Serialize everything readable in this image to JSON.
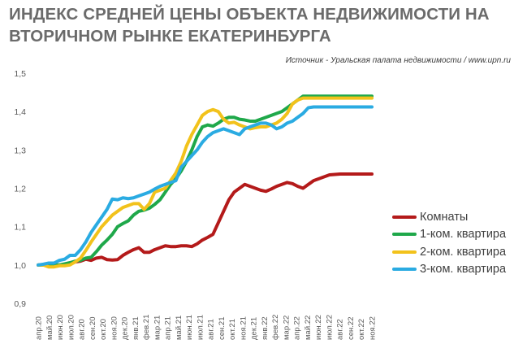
{
  "title": "ИНДЕКС СРЕДНЕЙ ЦЕНЫ ОБЪЕКТА НЕДВИЖИМОСТИ НА ВТОРИЧНОМ РЫНКЕ ЕКАТЕРИНБУРГА",
  "source": "Источник - Уральская палата недвижимости  / www.upn.ru",
  "chart_data": {
    "type": "line",
    "title": "ИНДЕКС СРЕДНЕЙ ЦЕНЫ ОБЪЕКТА НЕДВИЖИМОСТИ НА ВТОРИЧНОМ РЫНКЕ ЕКАТЕРИНБУРГА",
    "xlabel": "",
    "ylabel": "",
    "ylim": [
      0.9,
      1.5
    ],
    "yticks": [
      "0,9",
      "1,0",
      "1,1",
      "1,2",
      "1,3",
      "1,4",
      "1,5"
    ],
    "grid": false,
    "legend_position": "right",
    "categories": [
      "апр.20",
      "май.20",
      "июн.20",
      "июл.20",
      "авг.20",
      "сен.20",
      "окт.20",
      "ноя.20",
      "дек.20",
      "янв.21",
      "фев.21",
      "мар.21",
      "апр.21",
      "май.21",
      "июн.21",
      "июл.21",
      "авг.21",
      "сен.21",
      "окт.21",
      "ноя.21",
      "дек.21",
      "янв.22",
      "фев.22",
      "мар.22",
      "апр.22",
      "май.22",
      "июн.22",
      "июл.22",
      "авг.22",
      "сен.22",
      "окт.22",
      "ноя.22"
    ],
    "x": [
      0,
      1,
      2,
      3,
      4,
      5,
      6,
      7,
      8,
      9,
      10,
      11,
      12,
      13,
      14,
      15,
      16,
      17,
      18,
      19,
      20,
      21,
      22,
      23,
      24,
      25,
      26,
      27,
      28,
      29,
      30,
      31,
      32,
      33,
      34,
      35,
      36,
      37,
      38,
      39,
      40,
      41,
      42,
      43,
      44,
      45,
      46,
      47,
      48,
      49,
      50,
      51,
      52,
      53,
      54,
      55,
      56,
      57,
      58,
      59,
      60,
      61,
      62,
      63
    ],
    "series": [
      {
        "name": "Комнаты",
        "color": "#b41a1a",
        "values": [
          1.0,
          1.0,
          1.0,
          1.0,
          1.0,
          1.0,
          1.003,
          1.008,
          1.01,
          1.015,
          1.012,
          1.018,
          1.02,
          1.014,
          1.013,
          1.014,
          1.025,
          1.033,
          1.04,
          1.045,
          1.033,
          1.033,
          1.04,
          1.045,
          1.05,
          1.048,
          1.048,
          1.05,
          1.05,
          1.048,
          1.055,
          1.065,
          1.072,
          1.08,
          1.11,
          1.14,
          1.17,
          1.19,
          1.2,
          1.21,
          1.205,
          1.2,
          1.195,
          1.192,
          1.198,
          1.205,
          1.21,
          1.215,
          1.212,
          1.205,
          1.2,
          1.21,
          1.22,
          1.225,
          1.23,
          1.235,
          1.236,
          1.237,
          1.237,
          1.237,
          1.237,
          1.237,
          1.237,
          1.237
        ]
      },
      {
        "name": "1-ком. квартира",
        "color": "#1fa84a",
        "values": [
          1.0,
          1.0,
          1.0,
          1.0,
          1.0,
          1.003,
          1.006,
          1.01,
          1.012,
          1.018,
          1.02,
          1.035,
          1.052,
          1.065,
          1.08,
          1.1,
          1.108,
          1.115,
          1.13,
          1.14,
          1.143,
          1.148,
          1.158,
          1.17,
          1.19,
          1.21,
          1.225,
          1.245,
          1.27,
          1.3,
          1.335,
          1.36,
          1.365,
          1.362,
          1.37,
          1.38,
          1.385,
          1.385,
          1.38,
          1.378,
          1.375,
          1.375,
          1.38,
          1.385,
          1.39,
          1.395,
          1.4,
          1.41,
          1.42,
          1.43,
          1.44,
          1.44,
          1.44,
          1.44,
          1.44,
          1.44,
          1.44,
          1.44,
          1.44,
          1.44,
          1.44,
          1.44,
          1.44,
          1.44
        ]
      },
      {
        "name": "2-ком. квартира",
        "color": "#f2c21b",
        "values": [
          1.0,
          1.0,
          0.995,
          0.995,
          0.998,
          0.998,
          1.0,
          1.008,
          1.018,
          1.038,
          1.06,
          1.08,
          1.1,
          1.115,
          1.13,
          1.14,
          1.15,
          1.155,
          1.16,
          1.16,
          1.145,
          1.16,
          1.19,
          1.195,
          1.2,
          1.22,
          1.24,
          1.27,
          1.31,
          1.34,
          1.365,
          1.39,
          1.4,
          1.405,
          1.4,
          1.38,
          1.37,
          1.372,
          1.365,
          1.36,
          1.355,
          1.358,
          1.36,
          1.36,
          1.365,
          1.37,
          1.38,
          1.395,
          1.42,
          1.43,
          1.435,
          1.435,
          1.435,
          1.435,
          1.435,
          1.435,
          1.435,
          1.435,
          1.435,
          1.435,
          1.435,
          1.435,
          1.435,
          1.435
        ]
      },
      {
        "name": "3-ком. квартира",
        "color": "#2aabe2",
        "values": [
          1.0,
          1.002,
          1.005,
          1.005,
          1.012,
          1.015,
          1.025,
          1.025,
          1.04,
          1.06,
          1.085,
          1.105,
          1.125,
          1.145,
          1.172,
          1.17,
          1.175,
          1.173,
          1.175,
          1.18,
          1.185,
          1.19,
          1.198,
          1.205,
          1.21,
          1.215,
          1.22,
          1.255,
          1.27,
          1.285,
          1.3,
          1.32,
          1.335,
          1.345,
          1.35,
          1.355,
          1.35,
          1.345,
          1.34,
          1.355,
          1.36,
          1.365,
          1.37,
          1.37,
          1.365,
          1.355,
          1.36,
          1.37,
          1.375,
          1.385,
          1.395,
          1.41,
          1.412,
          1.412,
          1.412,
          1.412,
          1.412,
          1.412,
          1.412,
          1.412,
          1.412,
          1.412,
          1.412,
          1.412
        ]
      }
    ]
  }
}
